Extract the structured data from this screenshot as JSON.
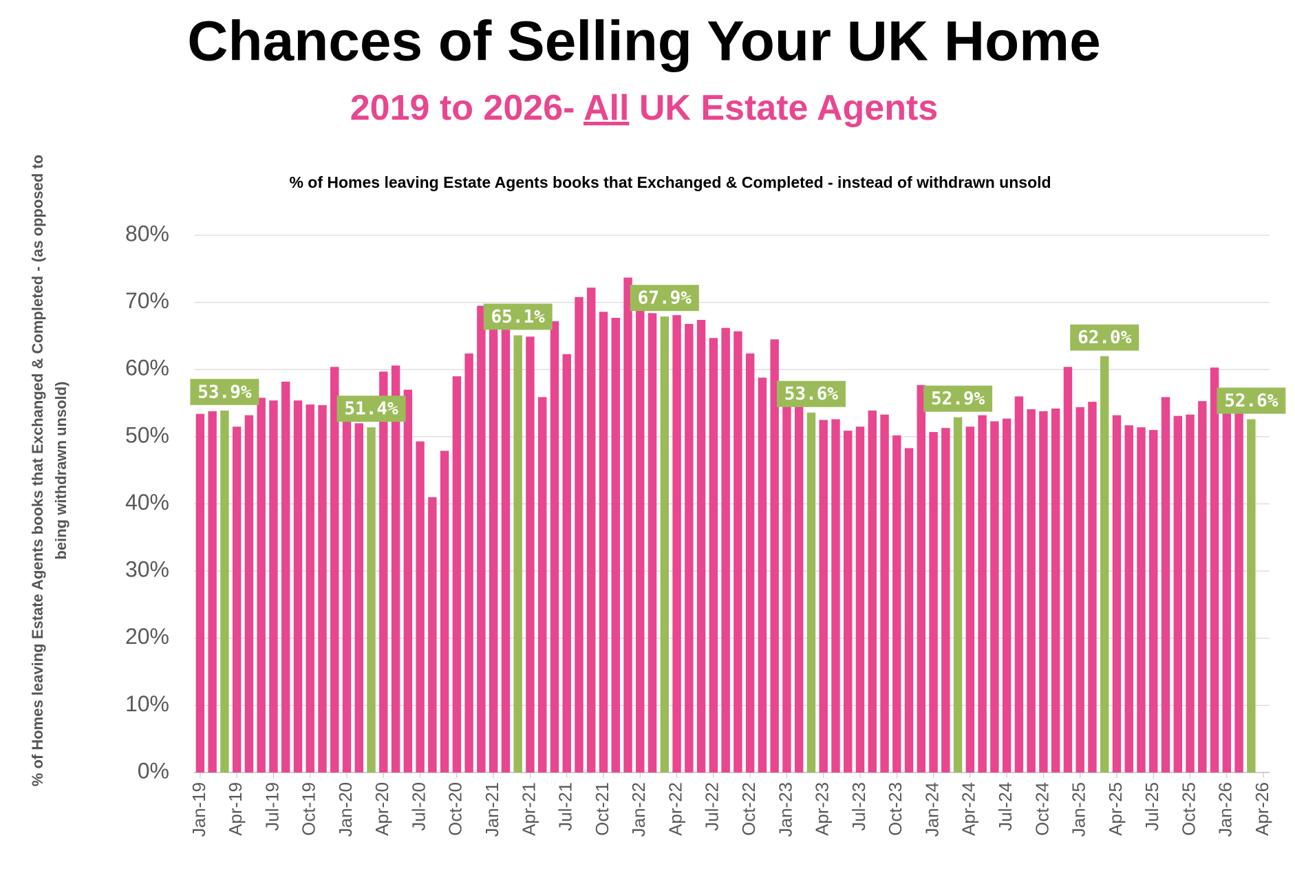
{
  "chart_data": {
    "type": "bar",
    "title": "Chances of Selling Your UK Home",
    "subtitle": [
      "2019 to 2026- ",
      "All",
      " UK Estate Agents"
    ],
    "chart_title": "% of Homes leaving Estate Agents books that Exchanged & Completed - instead of withdrawn unsold",
    "y_label": [
      "% of Homes leaving Estate Agents books that Exchanged & Completed - (as opposed to",
      "being withdrawn unsold)"
    ],
    "categories": [
      "Jan-19",
      null,
      null,
      "Apr-19",
      null,
      null,
      "Jul-19",
      null,
      null,
      "Oct-19",
      null,
      null,
      "Jan-20",
      null,
      null,
      "Apr-20",
      null,
      null,
      "Jul-20",
      null,
      null,
      "Oct-20",
      null,
      null,
      "Jan-21",
      null,
      null,
      "Apr-21",
      null,
      null,
      "Jul-21",
      null,
      null,
      "Oct-21",
      null,
      null,
      "Jan-22",
      null,
      null,
      "Apr-22",
      null,
      null,
      "Jul-22",
      null,
      null,
      "Oct-22",
      null,
      null,
      "Jan-23",
      null,
      null,
      "Apr-23",
      null,
      null,
      "Jul-23",
      null,
      null,
      "Oct-23",
      null,
      null,
      "Jan-24",
      null,
      null,
      "Apr-24",
      null,
      null,
      "Jul-24",
      null,
      null,
      "Oct-24",
      null,
      null,
      "Jan-25",
      null,
      null,
      "Apr-25",
      null,
      null,
      "Jul-25",
      null,
      null,
      "Oct-25",
      null,
      null,
      "Jan-26",
      null,
      null,
      "Apr-26"
    ],
    "values": [
      53.4,
      53.8,
      53.9,
      51.5,
      53.2,
      55.8,
      55.4,
      58.2,
      55.4,
      54.8,
      54.7,
      60.4,
      53.0,
      52.0,
      51.4,
      59.7,
      60.6,
      57.0,
      49.3,
      41.0,
      47.9,
      59.0,
      62.4,
      69.5,
      68.0,
      66.5,
      65.1,
      64.9,
      55.9,
      67.2,
      62.3,
      70.8,
      72.2,
      68.6,
      67.7,
      73.7,
      70.5,
      68.4,
      67.9,
      68.1,
      66.8,
      67.4,
      64.7,
      66.2,
      65.7,
      62.4,
      58.8,
      64.5,
      55.0,
      54.5,
      53.6,
      52.5,
      52.6,
      50.9,
      51.5,
      53.9,
      53.3,
      50.2,
      48.3,
      57.7,
      50.7,
      51.3,
      52.9,
      51.5,
      53.2,
      52.3,
      52.7,
      56.0,
      54.1,
      53.8,
      54.2,
      60.4,
      54.4,
      55.2,
      62.0,
      53.2,
      51.7,
      51.4,
      51.0,
      55.9,
      53.1,
      53.3,
      55.3,
      60.3,
      54.5,
      53.5,
      52.6,
      null
    ],
    "value_labels": [
      null,
      null,
      "53.9%",
      null,
      null,
      null,
      null,
      null,
      null,
      null,
      null,
      null,
      null,
      null,
      "51.4%",
      null,
      null,
      null,
      null,
      null,
      null,
      null,
      null,
      null,
      null,
      null,
      "65.1%",
      null,
      null,
      null,
      null,
      null,
      null,
      null,
      null,
      null,
      null,
      null,
      "67.9%",
      null,
      null,
      null,
      null,
      null,
      null,
      null,
      null,
      null,
      null,
      null,
      "53.6%",
      null,
      null,
      null,
      null,
      null,
      null,
      null,
      null,
      null,
      null,
      null,
      "52.9%",
      null,
      null,
      null,
      null,
      null,
      null,
      null,
      null,
      null,
      null,
      null,
      "62.0%",
      null,
      null,
      null,
      null,
      null,
      null,
      null,
      null,
      null,
      null,
      null,
      "52.6%",
      null
    ],
    "color": "#e8468f",
    "highlight_color": "#9bbb59",
    "ylim": [
      0,
      80
    ],
    "yticks": [
      {
        "value": 0,
        "label": "0%"
      },
      {
        "value": 10,
        "label": "10%"
      },
      {
        "value": 20,
        "label": "20%"
      },
      {
        "value": 30,
        "label": "30%"
      },
      {
        "value": 40,
        "label": "40%"
      },
      {
        "value": 50,
        "label": "50%"
      },
      {
        "value": 60,
        "label": "60%"
      },
      {
        "value": 70,
        "label": "70%"
      },
      {
        "value": 80,
        "label": "80%"
      }
    ],
    "grid": true
  }
}
